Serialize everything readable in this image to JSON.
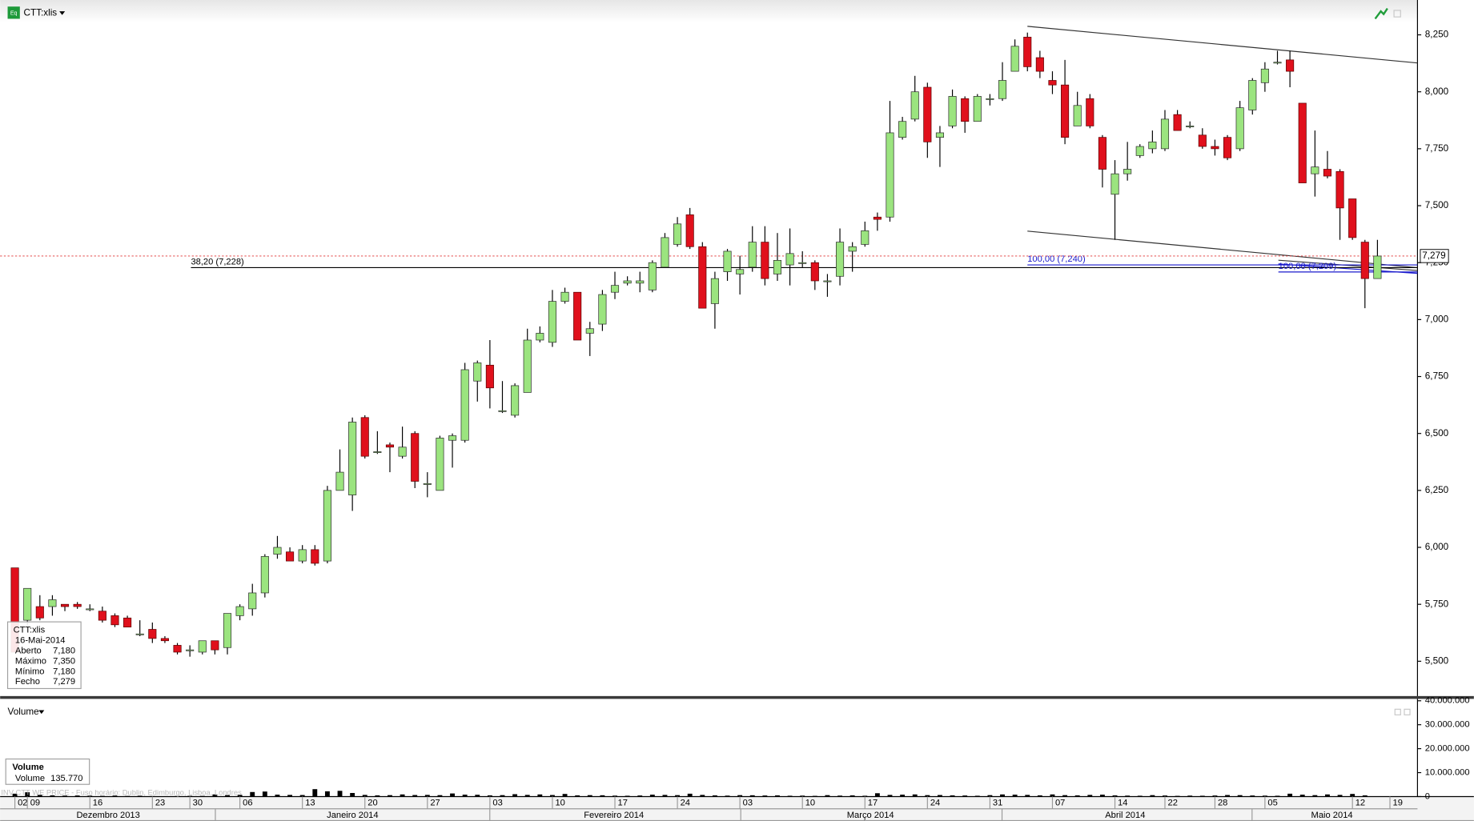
{
  "chart_data": {
    "type": "candlestick",
    "title": "CTT:xlis",
    "icon_text": "Eq",
    "categories": [
      "02",
      "09",
      null,
      null,
      null,
      null,
      "16",
      null,
      null,
      null,
      null,
      "23",
      null,
      null,
      "30",
      null,
      null,
      null,
      "06",
      null,
      null,
      null,
      null,
      "13",
      null,
      null,
      null,
      null,
      "20",
      null,
      null,
      null,
      null,
      "27",
      null,
      null,
      null,
      null,
      "03",
      null,
      null,
      null,
      null,
      "10",
      null,
      null,
      null,
      null,
      "17",
      null,
      null,
      null,
      null,
      "24",
      null,
      null,
      null,
      null,
      "03",
      null,
      null,
      null,
      null,
      "10",
      null,
      null,
      null,
      null,
      "17",
      null,
      null,
      null,
      null,
      "24",
      null,
      null,
      null,
      null,
      "31",
      null,
      null,
      null,
      null,
      "07",
      null,
      null,
      null,
      null,
      "14",
      null,
      null,
      null,
      "22",
      null,
      null,
      null,
      "28",
      null,
      null,
      null,
      "05",
      null,
      null,
      null,
      null,
      null,
      null,
      "12",
      null,
      null,
      "19"
    ],
    "months": [
      "Dezembro 2013",
      "Janeiro 2014",
      "Fevereiro 2014",
      "Março 2014",
      "Abril 2014",
      "Maio 2014"
    ],
    "open": [
      5.91,
      5.68,
      5.74,
      5.74,
      5.75,
      5.75,
      5.73,
      5.72,
      5.7,
      5.69,
      5.62,
      5.64,
      5.6,
      5.57,
      5.55,
      5.54,
      5.59,
      5.56,
      5.7,
      5.73,
      5.8,
      5.97,
      5.98,
      5.94,
      5.99,
      5.94,
      6.25,
      6.23,
      6.57,
      6.42,
      6.45,
      6.4,
      6.5,
      6.28,
      6.25,
      6.47,
      6.47,
      6.73,
      6.8,
      6.6,
      6.58,
      6.68,
      6.91,
      6.9,
      7.08,
      7.12,
      6.94,
      6.98,
      7.12,
      7.16,
      7.16,
      7.13,
      7.23,
      7.33,
      7.46,
      7.32,
      7.07,
      7.21,
      7.2,
      7.23,
      7.34,
      7.2,
      7.24,
      7.25,
      7.25,
      7.17,
      7.19,
      7.3,
      7.33,
      7.45,
      7.45,
      7.8,
      7.88,
      8.02,
      7.8,
      7.85,
      7.97,
      7.87,
      7.97,
      7.97,
      8.09,
      8.24,
      8.15,
      8.05,
      8.03,
      7.85,
      7.97,
      7.8,
      7.55,
      7.64,
      7.72,
      7.75,
      7.75,
      7.9,
      7.85,
      7.81,
      7.76,
      7.8,
      7.75,
      7.92,
      8.04,
      8.13,
      8.14,
      7.95,
      7.64,
      7.66,
      7.65,
      7.53,
      7.34,
      7.18,
      null
    ],
    "high": [
      5.91,
      5.82,
      5.79,
      5.79,
      5.75,
      5.76,
      5.75,
      5.74,
      5.71,
      5.7,
      5.68,
      5.67,
      5.61,
      5.58,
      5.57,
      5.59,
      5.59,
      5.71,
      5.75,
      5.84,
      5.97,
      6.05,
      6.0,
      6.01,
      6.01,
      6.27,
      6.43,
      6.57,
      6.58,
      6.51,
      6.46,
      6.53,
      6.51,
      6.33,
      6.49,
      6.5,
      6.81,
      6.82,
      6.91,
      6.73,
      6.72,
      6.96,
      6.97,
      7.13,
      7.14,
      7.12,
      6.99,
      7.13,
      7.21,
      7.19,
      7.21,
      7.26,
      7.38,
      7.45,
      7.49,
      7.34,
      7.21,
      7.31,
      7.28,
      7.41,
      7.41,
      7.38,
      7.4,
      7.3,
      7.26,
      7.2,
      7.4,
      7.34,
      7.43,
      7.47,
      7.96,
      7.89,
      8.07,
      8.04,
      7.85,
      8.01,
      7.98,
      7.99,
      7.99,
      8.13,
      8.23,
      8.26,
      8.18,
      8.09,
      8.14,
      8.0,
      7.99,
      7.81,
      7.7,
      7.78,
      7.77,
      7.83,
      7.92,
      7.92,
      7.87,
      7.84,
      7.79,
      7.81,
      7.96,
      8.06,
      8.13,
      8.18,
      8.18,
      7.95,
      7.83,
      7.74,
      7.66,
      7.53,
      7.35,
      7.35,
      null
    ],
    "low": [
      5.54,
      5.66,
      5.68,
      5.7,
      5.72,
      5.73,
      5.72,
      5.67,
      5.65,
      5.65,
      5.61,
      5.58,
      5.58,
      5.53,
      5.52,
      5.53,
      5.53,
      5.53,
      5.68,
      5.7,
      5.78,
      5.95,
      5.94,
      5.93,
      5.92,
      5.93,
      6.25,
      6.16,
      6.39,
      6.41,
      6.33,
      6.39,
      6.26,
      6.22,
      6.25,
      6.35,
      6.46,
      6.64,
      6.61,
      6.59,
      6.57,
      6.68,
      6.9,
      6.88,
      7.07,
      6.91,
      6.84,
      6.95,
      7.09,
      7.15,
      7.12,
      7.12,
      7.23,
      7.32,
      7.31,
      7.05,
      6.96,
      7.17,
      7.11,
      7.21,
      7.15,
      7.17,
      7.15,
      7.23,
      7.13,
      7.1,
      7.15,
      7.21,
      7.32,
      7.39,
      7.43,
      7.79,
      7.87,
      7.71,
      7.67,
      7.84,
      7.82,
      7.87,
      7.94,
      7.96,
      8.09,
      8.09,
      8.06,
      7.99,
      7.77,
      7.85,
      7.84,
      7.58,
      7.35,
      7.61,
      7.71,
      7.73,
      7.74,
      7.83,
      7.84,
      7.75,
      7.72,
      7.7,
      7.74,
      7.9,
      8.0,
      8.12,
      8.02,
      7.6,
      7.54,
      7.62,
      7.35,
      7.35,
      7.05,
      7.18,
      null
    ],
    "close": [
      5.54,
      5.82,
      5.69,
      5.77,
      5.74,
      5.74,
      5.73,
      5.68,
      5.66,
      5.65,
      5.62,
      5.6,
      5.59,
      5.54,
      5.55,
      5.59,
      5.55,
      5.71,
      5.74,
      5.8,
      5.96,
      6.0,
      5.94,
      5.99,
      5.93,
      6.25,
      6.33,
      6.55,
      6.4,
      6.42,
      6.44,
      6.44,
      6.29,
      6.28,
      6.48,
      6.49,
      6.78,
      6.81,
      6.7,
      6.6,
      6.71,
      6.91,
      6.94,
      7.08,
      7.12,
      6.91,
      6.96,
      7.11,
      7.15,
      7.17,
      7.17,
      7.25,
      7.36,
      7.42,
      7.32,
      7.05,
      7.18,
      7.3,
      7.22,
      7.34,
      7.18,
      7.26,
      7.29,
      7.25,
      7.17,
      7.17,
      7.34,
      7.32,
      7.39,
      7.44,
      7.82,
      7.87,
      8.0,
      7.78,
      7.82,
      7.98,
      7.87,
      7.98,
      7.97,
      8.05,
      8.2,
      8.11,
      8.09,
      8.03,
      7.8,
      7.94,
      7.85,
      7.66,
      7.64,
      7.66,
      7.76,
      7.78,
      7.88,
      7.83,
      7.85,
      7.76,
      7.75,
      7.71,
      7.93,
      8.05,
      8.1,
      8.13,
      8.09,
      7.6,
      7.67,
      7.63,
      7.49,
      7.36,
      7.18,
      7.279,
      null
    ],
    "up_color": "#9be47f",
    "down_color": "#e0101c",
    "ylim": [
      5.343,
      8.403
    ],
    "yticks": [
      {
        "value": 5.5,
        "label": "5,500"
      },
      {
        "value": 5.75,
        "label": "5,750"
      },
      {
        "value": 6,
        "label": "6,000"
      },
      {
        "value": 6.25,
        "label": "6,250"
      },
      {
        "value": 6.5,
        "label": "6,500"
      },
      {
        "value": 6.75,
        "label": "6,750"
      },
      {
        "value": 7,
        "label": "7,000"
      },
      {
        "value": 7.25,
        "label": "7,250"
      },
      {
        "value": 7.5,
        "label": "7,500"
      },
      {
        "value": 7.75,
        "label": "7,750"
      },
      {
        "value": 8,
        "label": "8,000"
      },
      {
        "value": 8.25,
        "label": "8,250"
      }
    ],
    "last_price_label": "7,279",
    "annotations": [
      {
        "text": "38,20 (7,228)",
        "value": 7.228,
        "color": "#000000"
      },
      {
        "text": "100,00 (7,240)",
        "value": 7.24,
        "color": "#1a1acc"
      },
      {
        "text": "100,00 (7,209)",
        "value": 7.209,
        "color": "#1a1acc"
      }
    ],
    "tooltip": {
      "title": "CTT:xlis",
      "date": "16-Mai-2014",
      "rows": [
        {
          "label": "Aberto",
          "value": "7,180"
        },
        {
          "label": "Máximo",
          "value": "7,350"
        },
        {
          "label": "Mínimo",
          "value": "7,180"
        },
        {
          "label": "Fecho",
          "value": "7,279"
        }
      ]
    },
    "volume": {
      "name": "Volume",
      "color": "#000000",
      "values": [
        1200000,
        1800000,
        700000,
        500000,
        400000,
        450000,
        380000,
        300000,
        420000,
        260000,
        350000,
        200000,
        150000,
        250000,
        300000,
        280000,
        900000,
        600000,
        700000,
        1900000,
        2100000,
        800000,
        700000,
        650000,
        3100000,
        2200000,
        2400000,
        1500000,
        700000,
        500000,
        600000,
        900000,
        650000,
        700000,
        600000,
        1300000,
        800000,
        750000,
        500000,
        600000,
        1000000,
        700000,
        900000,
        650000,
        1100000,
        500000,
        600000,
        550000,
        400000,
        350000,
        450000,
        800000,
        700000,
        600000,
        1200000,
        700000,
        500000,
        400000,
        600000,
        550000,
        450000,
        500000,
        350000,
        400000,
        300000,
        600000,
        400000,
        500000,
        350000,
        1400000,
        700000,
        800000,
        900000,
        600000,
        650000,
        500000,
        450000,
        350000,
        600000,
        900000,
        800000,
        700000,
        500000,
        900000,
        600000,
        500000,
        700000,
        800000,
        500000,
        400000,
        350000,
        600000,
        450000,
        300000,
        400000,
        350000,
        450000,
        650000,
        600000,
        450000,
        400000,
        350000,
        1200000,
        800000,
        600000,
        900000,
        700000,
        1100000,
        500000,
        135770,
        null
      ],
      "ylim": [
        0,
        40400000
      ],
      "yticks": [
        0,
        {
          "value": 10000000,
          "label": "10.000.000"
        },
        {
          "value": 20000000,
          "label": "20.000.000"
        },
        {
          "value": 30000000,
          "label": "30.000.000"
        },
        {
          "value": 40000000,
          "label": "40.000.000"
        }
      ],
      "tooltip": {
        "title": "Volume",
        "label": "Volume",
        "value": "135.770"
      }
    },
    "footer_note": "INV CTT WE PRICE - Fuso horário: Dublin, Edimburgo, Lisboa, Londres"
  }
}
